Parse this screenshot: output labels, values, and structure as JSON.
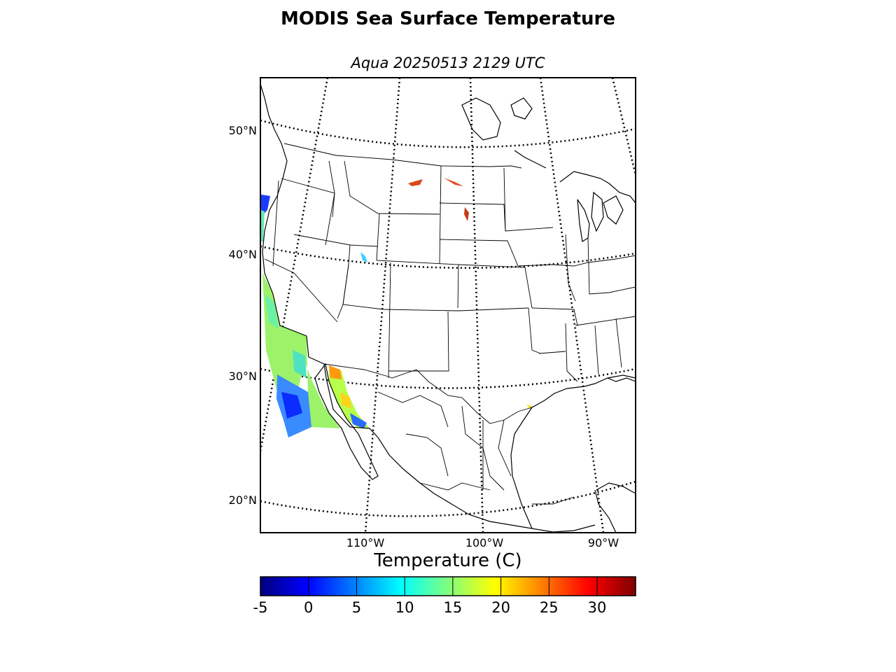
{
  "title": "MODIS Sea Surface Temperature",
  "subtitle": "Aqua 20250513 2129 UTC",
  "latitude_labels": [
    "50°N",
    "40°N",
    "30°N",
    "20°N"
  ],
  "longitude_labels": [
    "110°W",
    "100°W",
    "90°W"
  ],
  "colorbar": {
    "title": "Temperature (C)",
    "ticks": [
      "-5",
      "0",
      "5",
      "10",
      "15",
      "20",
      "25",
      "30"
    ],
    "range": [
      -5,
      34
    ],
    "colormap": "jet",
    "colors": [
      "#00007f",
      "#0000ff",
      "#007fff",
      "#00ffff",
      "#7fff7f",
      "#ffff00",
      "#ff7f00",
      "#ff0000",
      "#7f0000"
    ]
  }
}
